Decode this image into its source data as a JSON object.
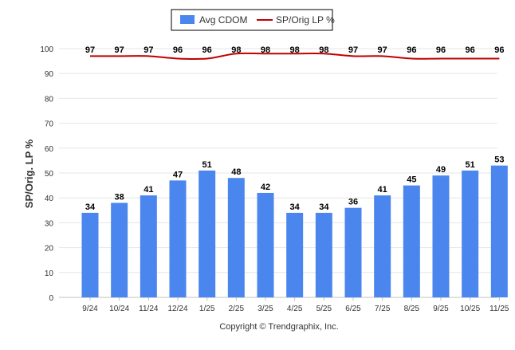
{
  "chart_data": {
    "type": "bar",
    "categories": [
      "9/24",
      "10/24",
      "11/24",
      "12/24",
      "1/25",
      "2/25",
      "3/25",
      "4/25",
      "5/25",
      "6/25",
      "7/25",
      "8/25",
      "9/25",
      "10/25",
      "11/25"
    ],
    "series": [
      {
        "name": "Avg CDOM",
        "kind": "bar",
        "color": "#4a86ee",
        "values": [
          34,
          38,
          41,
          47,
          51,
          48,
          42,
          34,
          34,
          36,
          41,
          45,
          49,
          51,
          53
        ]
      },
      {
        "name": "SP/Orig LP %",
        "kind": "line",
        "color": "#c00000",
        "values": [
          97,
          97,
          97,
          96,
          96,
          98,
          98,
          98,
          98,
          97,
          97,
          96,
          96,
          96,
          96
        ]
      }
    ],
    "ylabel": "SP/Orig. LP %",
    "xlabel": "",
    "ylim": [
      0,
      100
    ],
    "yticks": [
      0,
      10,
      20,
      30,
      40,
      50,
      60,
      70,
      80,
      90,
      100
    ],
    "grid": true,
    "legend_position": "top-center",
    "footer": "Copyright © Trendgraphix, Inc."
  }
}
